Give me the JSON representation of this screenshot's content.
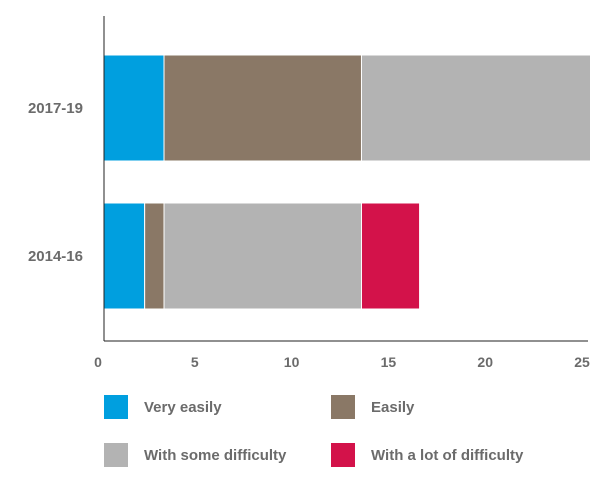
{
  "chart_data": {
    "type": "bar",
    "orientation": "horizontal",
    "stacked": true,
    "title": "",
    "xlabel": "",
    "ylabel": "",
    "xlim": [
      0,
      25
    ],
    "xticks": [
      0,
      5,
      10,
      15,
      20,
      25
    ],
    "grid": false,
    "categories": [
      "2017-19",
      "2014-16"
    ],
    "series": [
      {
        "name": "Very easily",
        "color": "#009fdf",
        "values": [
          3.1,
          2.1
        ]
      },
      {
        "name": "Easily",
        "color": "#8a7866",
        "values": [
          10.2,
          1.0
        ]
      },
      {
        "name": "With some difficulty",
        "color": "#b3b3b3",
        "values": [
          12.5,
          10.2
        ]
      },
      {
        "name": "With a lot of difficulty",
        "color": "#d3124a",
        "values": [
          0,
          3.0
        ]
      }
    ],
    "legend_position": "bottom"
  }
}
